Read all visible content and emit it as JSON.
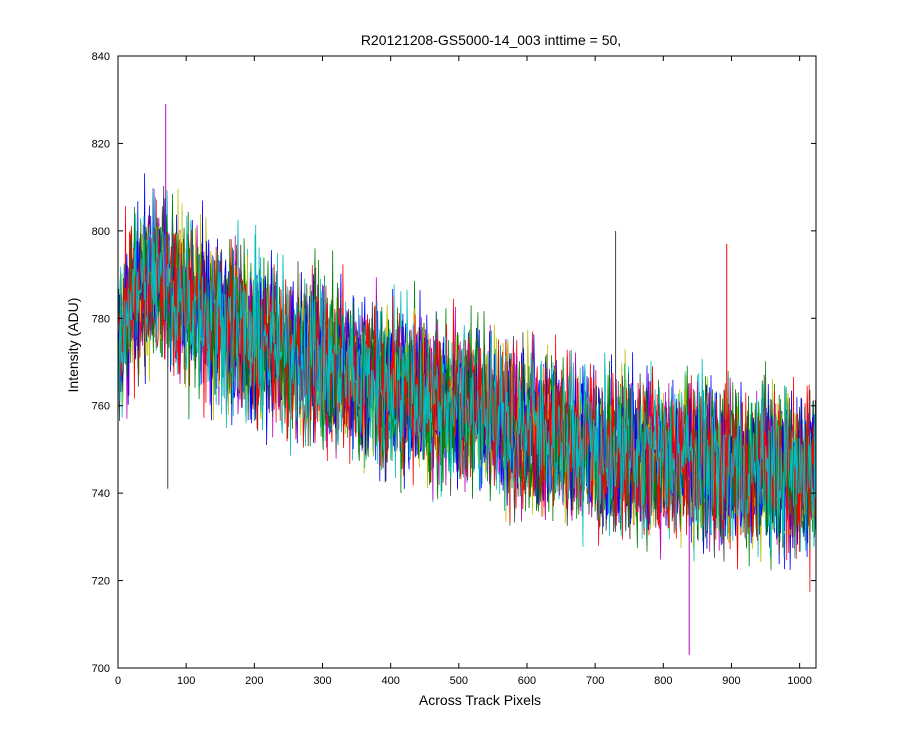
{
  "chart_data": {
    "type": "line",
    "title": "R20121208-GS5000-14_003 inttime = 50,",
    "xlabel": "Across Track Pixels",
    "ylabel": "Intensity (ADU)",
    "xlim": [
      0,
      1024
    ],
    "ylim": [
      700,
      840
    ],
    "xticks": [
      0,
      100,
      200,
      300,
      400,
      500,
      600,
      700,
      800,
      900,
      1000
    ],
    "yticks": [
      700,
      720,
      740,
      760,
      780,
      800,
      820,
      840
    ],
    "grid": false,
    "legend": "none",
    "n_points": 1024,
    "trend": [
      {
        "x": 0,
        "y": 775
      },
      {
        "x": 20,
        "y": 785
      },
      {
        "x": 50,
        "y": 790
      },
      {
        "x": 100,
        "y": 784
      },
      {
        "x": 200,
        "y": 775
      },
      {
        "x": 300,
        "y": 770
      },
      {
        "x": 400,
        "y": 764
      },
      {
        "x": 500,
        "y": 760
      },
      {
        "x": 600,
        "y": 755
      },
      {
        "x": 700,
        "y": 750
      },
      {
        "x": 800,
        "y": 748
      },
      {
        "x": 900,
        "y": 746
      },
      {
        "x": 1024,
        "y": 744
      }
    ],
    "noise_amplitude": 9,
    "series": [
      {
        "color": "#0000ff"
      },
      {
        "color": "#008000"
      },
      {
        "color": "#ff0000"
      },
      {
        "color": "#00bfbf"
      },
      {
        "color": "#bf00bf"
      },
      {
        "color": "#bfbf00"
      },
      {
        "color": "#404040"
      },
      {
        "color": "#0000ff"
      },
      {
        "color": "#008000"
      },
      {
        "color": "#ff0000"
      },
      {
        "color": "#00bfbf"
      }
    ],
    "highlights": [
      {
        "x": 70,
        "y": 829
      },
      {
        "x": 73,
        "y": 741
      },
      {
        "x": 730,
        "y": 800
      },
      {
        "x": 838,
        "y": 703
      },
      {
        "x": 893,
        "y": 797
      }
    ]
  }
}
